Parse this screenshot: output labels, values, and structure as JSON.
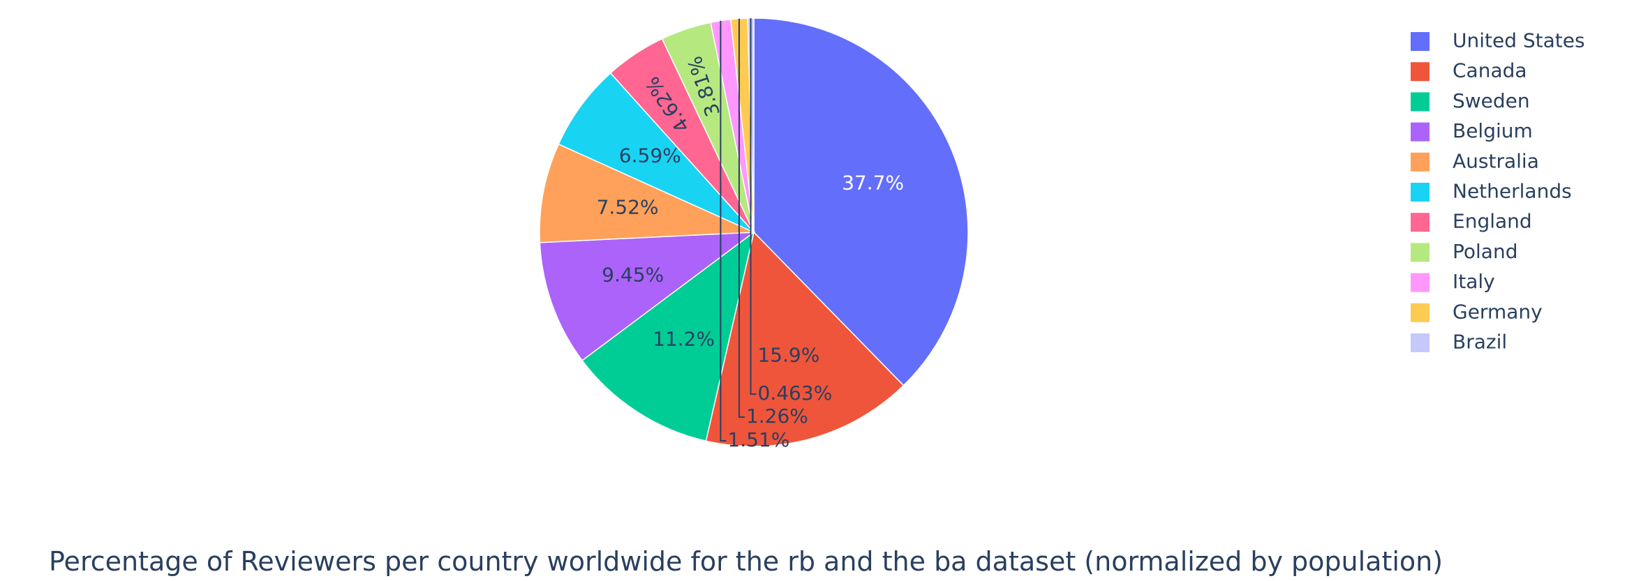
{
  "chart_data": {
    "type": "pie",
    "title": "Percentage of Reviewers per country worldwide for the rb and the ba dataset (normalized by population)",
    "sort": "descending",
    "direction": "clockwise",
    "legend_position": "top-right",
    "slices": [
      {
        "label": "United States",
        "value": 37.7,
        "text": "37.7%",
        "color": "#636efa"
      },
      {
        "label": "Canada",
        "value": 15.9,
        "text": "15.9%",
        "color": "#EF553B"
      },
      {
        "label": "Sweden",
        "value": 11.2,
        "text": "11.2%",
        "color": "#00cc96"
      },
      {
        "label": "Belgium",
        "value": 9.45,
        "text": "9.45%",
        "color": "#ab63fa"
      },
      {
        "label": "Australia",
        "value": 7.52,
        "text": "7.52%",
        "color": "#FFA15A"
      },
      {
        "label": "Netherlands",
        "value": 6.59,
        "text": "6.59%",
        "color": "#19d3f3"
      },
      {
        "label": "England",
        "value": 4.62,
        "text": "4.62%",
        "color": "#FF6692"
      },
      {
        "label": "Poland",
        "value": 3.81,
        "text": "3.81%",
        "color": "#B6E880"
      },
      {
        "label": "Italy",
        "value": 1.51,
        "text": "1.51%",
        "color": "#FF97FF"
      },
      {
        "label": "Germany",
        "value": 1.26,
        "text": "1.26%",
        "color": "#FECB52"
      },
      {
        "label": "Brazil",
        "value": 0.463,
        "text": "0.463%",
        "color": "#c6c8fa"
      }
    ]
  }
}
